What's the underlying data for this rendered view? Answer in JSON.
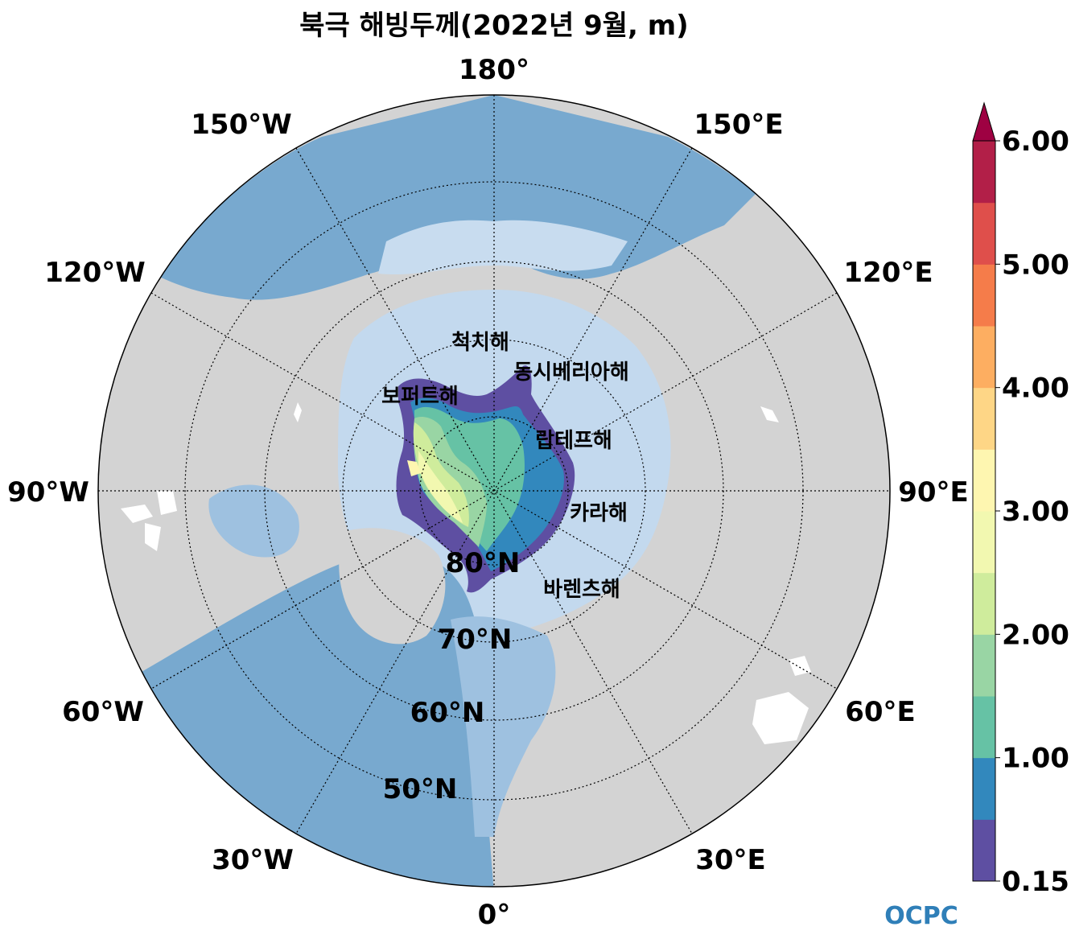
{
  "title": "북극 해빙두께(2022년 9월, m)",
  "longitude_labels": [
    "180°",
    "150°E",
    "120°E",
    "90°E",
    "60°E",
    "30°E",
    "0°",
    "30°W",
    "60°W",
    "90°W",
    "120°W",
    "150°W"
  ],
  "latitude_labels": [
    "80°N",
    "70°N",
    "60°N",
    "50°N"
  ],
  "sea_labels": [
    "척치해",
    "동시베리아해",
    "보퍼트해",
    "랍테프해",
    "카라해",
    "바렌츠해"
  ],
  "colorbar": {
    "ticks": [
      "6.00",
      "5.00",
      "4.00",
      "3.00",
      "2.00",
      "1.00",
      "0.15"
    ],
    "colors": [
      "#5e4fa2",
      "#3288bd",
      "#66c2a5",
      "#99d5a4",
      "#cfec9c",
      "#f2f8b0",
      "#fef6b0",
      "#fed686",
      "#fdae61",
      "#f57c4a",
      "#df4f4b",
      "#b21f48",
      "#9e0142"
    ],
    "extend": "max"
  },
  "map_colors": {
    "land": "#d3d3d3",
    "ocean_deep": "#78a9cf",
    "ocean_shallow": "#d2e3f2",
    "ice_free_lake": "#ffffff"
  },
  "logo": "OCPC"
}
